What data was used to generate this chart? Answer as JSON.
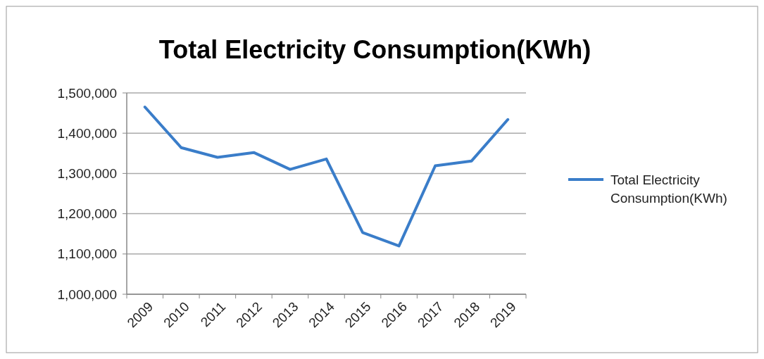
{
  "chart_data": {
    "type": "line",
    "title": "Total Electricity Consumption(KWh)",
    "categories": [
      "2009",
      "2010",
      "2011",
      "2012",
      "2013",
      "2014",
      "2015",
      "2016",
      "2017",
      "2018",
      "2019"
    ],
    "series": [
      {
        "name": "Total Electricity Consumption(KWh)",
        "color": "#3a7dc9",
        "values": [
          1465000,
          1364000,
          1340000,
          1352000,
          1310000,
          1336000,
          1153000,
          1120000,
          1319000,
          1331000,
          1434000
        ]
      }
    ],
    "ylim": [
      1000000,
      1500000
    ],
    "yticks": [
      {
        "value": 1000000,
        "label": "1,000,000"
      },
      {
        "value": 1100000,
        "label": "1,100,000"
      },
      {
        "value": 1200000,
        "label": "1,200,000"
      },
      {
        "value": 1300000,
        "label": "1,300,000"
      },
      {
        "value": 1400000,
        "label": "1,400,000"
      },
      {
        "value": 1500000,
        "label": "1,500,000"
      }
    ],
    "grid": "y",
    "legend": "right",
    "marker": "none",
    "line_style": "solid"
  }
}
